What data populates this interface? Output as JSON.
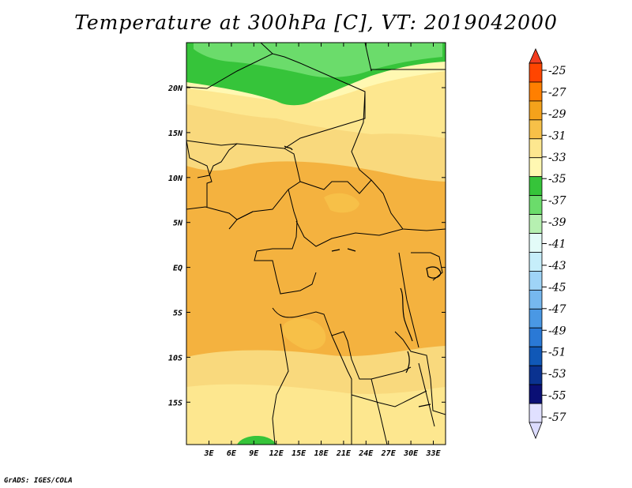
{
  "title": "Temperature at 300hPa [C], VT: 2019042000",
  "credit": "GrADS: IGES/COLA",
  "latitude_labels": [
    "20N",
    "15N",
    "10N",
    "5N",
    "EQ",
    "5S",
    "10S",
    "15S"
  ],
  "longitude_labels": [
    "3E",
    "6E",
    "9E",
    "12E",
    "15E",
    "18E",
    "21E",
    "24E",
    "27E",
    "30E",
    "33E"
  ],
  "colorbar": {
    "labels": [
      "-25",
      "-27",
      "-29",
      "-31",
      "-33",
      "-35",
      "-37",
      "-39",
      "-41",
      "-43",
      "-45",
      "-47",
      "-49",
      "-51",
      "-53",
      "-55",
      "-57"
    ],
    "colors": [
      "#ff4500",
      "#ff7f00",
      "#f4a21b",
      "#f7c048",
      "#fde78f",
      "#fff8b2",
      "#36c43a",
      "#6bdc6b",
      "#b6f0b1",
      "#e3fbf8",
      "#c6eefa",
      "#9fd4f7",
      "#76b8ef",
      "#4a98e4",
      "#2a79d6",
      "#1058b7",
      "#0a3290",
      "#0a0f75",
      "#e0e0ff"
    ],
    "bottom_arrow_color": "#dcdcff",
    "top_arrow_color": "#f23c1f"
  },
  "map_colors": {
    "border": "#000000",
    "background": "#f4b23f"
  }
}
